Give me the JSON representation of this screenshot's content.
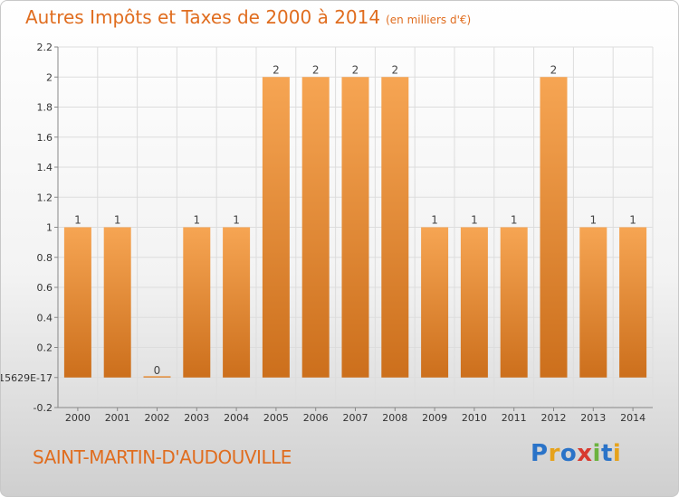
{
  "title": "Autres Impôts et Taxes de 2000 à 2014",
  "unit": "(en milliers d'€)",
  "commune": "SAINT-MARTIN-D'AUDOUVILLE",
  "logo": {
    "text": "Proxiti",
    "colors": [
      "#2a73c8",
      "#e6a21b",
      "#2a73c8",
      "#d83a2f",
      "#6cb33f",
      "#2a73c8",
      "#e6a21b"
    ]
  },
  "colors": {
    "bar_top": "#f6a553",
    "bar_bottom": "#cc6f1c",
    "grid": "#dddddd",
    "axis": "#888888",
    "title": "#e06d1f"
  },
  "chart_data": {
    "type": "bar",
    "title": "Autres Impôts et Taxes de 2000 à 2014",
    "xlabel": "",
    "ylabel": "",
    "categories": [
      "2000",
      "2001",
      "2002",
      "2003",
      "2004",
      "2005",
      "2006",
      "2007",
      "2008",
      "2009",
      "2010",
      "2011",
      "2012",
      "2013",
      "2014"
    ],
    "values": [
      1,
      1,
      0,
      1,
      1,
      2,
      2,
      2,
      2,
      1,
      1,
      1,
      2,
      1,
      1
    ],
    "data_labels": [
      "1",
      "1",
      "0",
      "1",
      "1",
      "2",
      "2",
      "2",
      "2",
      "1",
      "1",
      "1",
      "2",
      "1",
      "1"
    ],
    "ylim": [
      -0.2,
      2.2
    ],
    "yticks": [
      {
        "value": 2.2,
        "label": "2.2"
      },
      {
        "value": 2,
        "label": "2"
      },
      {
        "value": 1.8,
        "label": "1.8"
      },
      {
        "value": 1.6,
        "label": "1.6"
      },
      {
        "value": 1.4,
        "label": "1.4"
      },
      {
        "value": 1.2,
        "label": "1.2"
      },
      {
        "value": 1,
        "label": "1"
      },
      {
        "value": 0.8,
        "label": "0.8"
      },
      {
        "value": 0.6,
        "label": "0.6"
      },
      {
        "value": 0.4,
        "label": "0.4"
      },
      {
        "value": 0.2,
        "label": "0.2"
      },
      {
        "value": 0,
        "label": "15629E-17"
      },
      {
        "value": -0.2,
        "label": "-0.2"
      }
    ],
    "grid": true
  }
}
